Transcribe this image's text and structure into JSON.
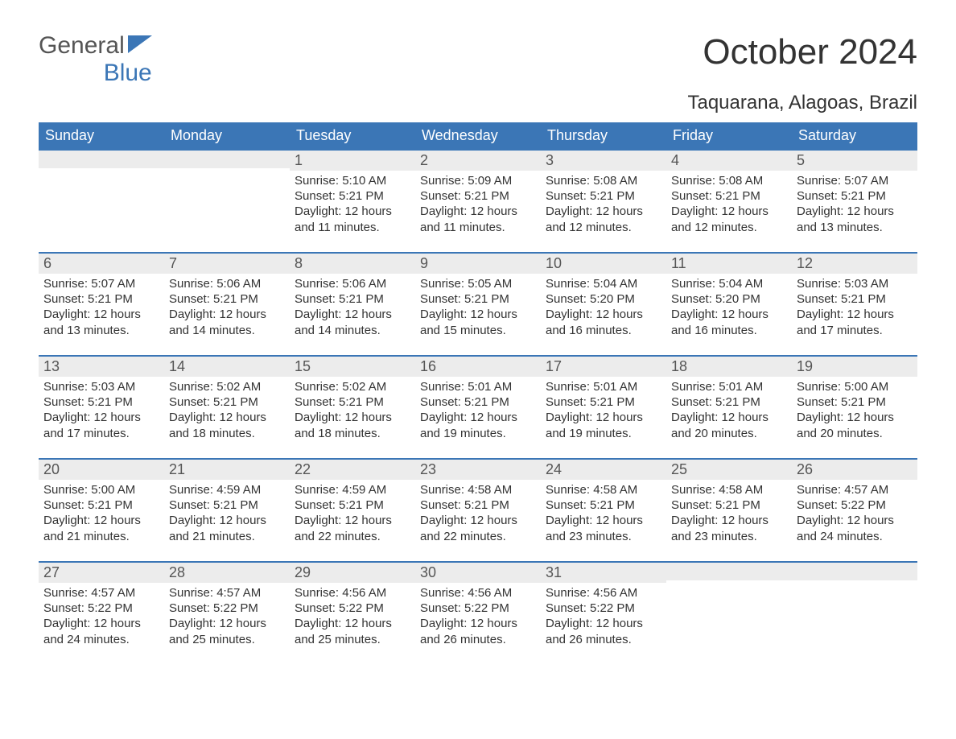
{
  "logo": {
    "top": "General",
    "bottom": "Blue",
    "icon_color": "#3b76b6"
  },
  "title": "October 2024",
  "subtitle": "Taquarana, Alagoas, Brazil",
  "colors": {
    "header_bg": "#3b76b6",
    "header_text": "#ffffff",
    "numbar_border": "#3b76b6",
    "numbar_bg": "#ececec",
    "numbar_text": "#555555",
    "body_text": "#333333",
    "page_bg": "#ffffff"
  },
  "typography": {
    "title_fontsize": 44,
    "subtitle_fontsize": 24,
    "dayhead_fontsize": 18,
    "daynum_fontsize": 18,
    "cell_fontsize": 15,
    "logo_fontsize": 30
  },
  "layout": {
    "columns": 7,
    "weeks": 5,
    "leading_blanks": 2,
    "trailing_blanks": 2,
    "cell_min_height": 128
  },
  "day_headers": [
    "Sunday",
    "Monday",
    "Tuesday",
    "Wednesday",
    "Thursday",
    "Friday",
    "Saturday"
  ],
  "days": [
    {
      "n": "1",
      "sunrise": "Sunrise: 5:10 AM",
      "sunset": "Sunset: 5:21 PM",
      "daylight": "Daylight: 12 hours and 11 minutes."
    },
    {
      "n": "2",
      "sunrise": "Sunrise: 5:09 AM",
      "sunset": "Sunset: 5:21 PM",
      "daylight": "Daylight: 12 hours and 11 minutes."
    },
    {
      "n": "3",
      "sunrise": "Sunrise: 5:08 AM",
      "sunset": "Sunset: 5:21 PM",
      "daylight": "Daylight: 12 hours and 12 minutes."
    },
    {
      "n": "4",
      "sunrise": "Sunrise: 5:08 AM",
      "sunset": "Sunset: 5:21 PM",
      "daylight": "Daylight: 12 hours and 12 minutes."
    },
    {
      "n": "5",
      "sunrise": "Sunrise: 5:07 AM",
      "sunset": "Sunset: 5:21 PM",
      "daylight": "Daylight: 12 hours and 13 minutes."
    },
    {
      "n": "6",
      "sunrise": "Sunrise: 5:07 AM",
      "sunset": "Sunset: 5:21 PM",
      "daylight": "Daylight: 12 hours and 13 minutes."
    },
    {
      "n": "7",
      "sunrise": "Sunrise: 5:06 AM",
      "sunset": "Sunset: 5:21 PM",
      "daylight": "Daylight: 12 hours and 14 minutes."
    },
    {
      "n": "8",
      "sunrise": "Sunrise: 5:06 AM",
      "sunset": "Sunset: 5:21 PM",
      "daylight": "Daylight: 12 hours and 14 minutes."
    },
    {
      "n": "9",
      "sunrise": "Sunrise: 5:05 AM",
      "sunset": "Sunset: 5:21 PM",
      "daylight": "Daylight: 12 hours and 15 minutes."
    },
    {
      "n": "10",
      "sunrise": "Sunrise: 5:04 AM",
      "sunset": "Sunset: 5:20 PM",
      "daylight": "Daylight: 12 hours and 16 minutes."
    },
    {
      "n": "11",
      "sunrise": "Sunrise: 5:04 AM",
      "sunset": "Sunset: 5:20 PM",
      "daylight": "Daylight: 12 hours and 16 minutes."
    },
    {
      "n": "12",
      "sunrise": "Sunrise: 5:03 AM",
      "sunset": "Sunset: 5:21 PM",
      "daylight": "Daylight: 12 hours and 17 minutes."
    },
    {
      "n": "13",
      "sunrise": "Sunrise: 5:03 AM",
      "sunset": "Sunset: 5:21 PM",
      "daylight": "Daylight: 12 hours and 17 minutes."
    },
    {
      "n": "14",
      "sunrise": "Sunrise: 5:02 AM",
      "sunset": "Sunset: 5:21 PM",
      "daylight": "Daylight: 12 hours and 18 minutes."
    },
    {
      "n": "15",
      "sunrise": "Sunrise: 5:02 AM",
      "sunset": "Sunset: 5:21 PM",
      "daylight": "Daylight: 12 hours and 18 minutes."
    },
    {
      "n": "16",
      "sunrise": "Sunrise: 5:01 AM",
      "sunset": "Sunset: 5:21 PM",
      "daylight": "Daylight: 12 hours and 19 minutes."
    },
    {
      "n": "17",
      "sunrise": "Sunrise: 5:01 AM",
      "sunset": "Sunset: 5:21 PM",
      "daylight": "Daylight: 12 hours and 19 minutes."
    },
    {
      "n": "18",
      "sunrise": "Sunrise: 5:01 AM",
      "sunset": "Sunset: 5:21 PM",
      "daylight": "Daylight: 12 hours and 20 minutes."
    },
    {
      "n": "19",
      "sunrise": "Sunrise: 5:00 AM",
      "sunset": "Sunset: 5:21 PM",
      "daylight": "Daylight: 12 hours and 20 minutes."
    },
    {
      "n": "20",
      "sunrise": "Sunrise: 5:00 AM",
      "sunset": "Sunset: 5:21 PM",
      "daylight": "Daylight: 12 hours and 21 minutes."
    },
    {
      "n": "21",
      "sunrise": "Sunrise: 4:59 AM",
      "sunset": "Sunset: 5:21 PM",
      "daylight": "Daylight: 12 hours and 21 minutes."
    },
    {
      "n": "22",
      "sunrise": "Sunrise: 4:59 AM",
      "sunset": "Sunset: 5:21 PM",
      "daylight": "Daylight: 12 hours and 22 minutes."
    },
    {
      "n": "23",
      "sunrise": "Sunrise: 4:58 AM",
      "sunset": "Sunset: 5:21 PM",
      "daylight": "Daylight: 12 hours and 22 minutes."
    },
    {
      "n": "24",
      "sunrise": "Sunrise: 4:58 AM",
      "sunset": "Sunset: 5:21 PM",
      "daylight": "Daylight: 12 hours and 23 minutes."
    },
    {
      "n": "25",
      "sunrise": "Sunrise: 4:58 AM",
      "sunset": "Sunset: 5:21 PM",
      "daylight": "Daylight: 12 hours and 23 minutes."
    },
    {
      "n": "26",
      "sunrise": "Sunrise: 4:57 AM",
      "sunset": "Sunset: 5:22 PM",
      "daylight": "Daylight: 12 hours and 24 minutes."
    },
    {
      "n": "27",
      "sunrise": "Sunrise: 4:57 AM",
      "sunset": "Sunset: 5:22 PM",
      "daylight": "Daylight: 12 hours and 24 minutes."
    },
    {
      "n": "28",
      "sunrise": "Sunrise: 4:57 AM",
      "sunset": "Sunset: 5:22 PM",
      "daylight": "Daylight: 12 hours and 25 minutes."
    },
    {
      "n": "29",
      "sunrise": "Sunrise: 4:56 AM",
      "sunset": "Sunset: 5:22 PM",
      "daylight": "Daylight: 12 hours and 25 minutes."
    },
    {
      "n": "30",
      "sunrise": "Sunrise: 4:56 AM",
      "sunset": "Sunset: 5:22 PM",
      "daylight": "Daylight: 12 hours and 26 minutes."
    },
    {
      "n": "31",
      "sunrise": "Sunrise: 4:56 AM",
      "sunset": "Sunset: 5:22 PM",
      "daylight": "Daylight: 12 hours and 26 minutes."
    }
  ]
}
